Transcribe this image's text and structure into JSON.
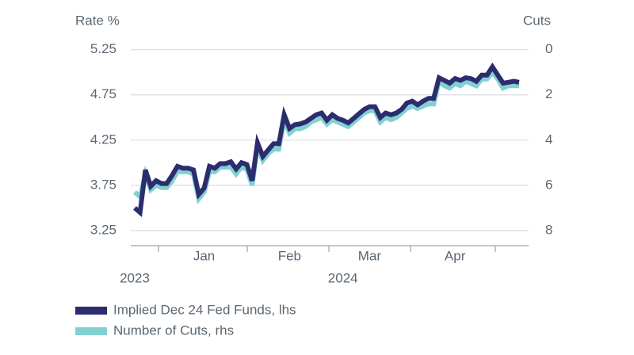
{
  "chart_data": {
    "type": "line",
    "y_axis_title": "Rate %",
    "y2_axis_title": "Cuts",
    "categories": [
      null,
      null,
      null,
      null,
      null,
      null,
      null,
      null,
      null,
      null,
      null,
      null,
      null,
      "Jan",
      null,
      null,
      null,
      null,
      null,
      null,
      null,
      null,
      null,
      null,
      null,
      null,
      null,
      null,
      null,
      "Feb",
      null,
      null,
      null,
      null,
      null,
      null,
      null,
      null,
      null,
      null,
      null,
      null,
      null,
      null,
      "Mar",
      null,
      null,
      null,
      null,
      null,
      null,
      null,
      null,
      null,
      null,
      null,
      null,
      null,
      null,
      null,
      "Apr",
      null,
      null,
      null,
      null,
      null,
      null,
      null,
      null,
      null,
      null,
      null,
      null
    ],
    "year_labels": [
      "2023",
      null,
      null,
      null,
      null,
      null,
      null,
      null,
      null,
      null,
      null,
      null,
      null,
      null,
      null,
      null,
      null,
      null,
      null,
      null,
      null,
      null,
      null,
      null,
      null,
      null,
      null,
      null,
      null,
      null,
      null,
      null,
      null,
      null,
      null,
      null,
      null,
      null,
      null,
      "2024",
      null,
      null,
      null,
      null,
      null,
      null,
      null,
      null,
      null,
      null,
      null,
      null,
      null,
      null,
      null,
      null,
      null,
      null,
      null,
      null,
      null,
      null,
      null,
      null,
      null,
      null,
      null,
      null,
      null,
      null,
      null,
      null,
      null
    ],
    "series": [
      {
        "name": "Number of Cuts, rhs",
        "color": "#82d0d1",
        "axis": "y2",
        "values": [
          6.3,
          6.5,
          5.5,
          6.2,
          6.0,
          6.1,
          6.1,
          5.8,
          5.4,
          5.4,
          5.4,
          5.5,
          6.6,
          6.3,
          5.4,
          5.4,
          5.2,
          5.2,
          5.2,
          5.5,
          5.2,
          5.3,
          6.0,
          4.3,
          4.9,
          4.6,
          4.4,
          4.4,
          3.1,
          3.7,
          3.5,
          3.5,
          3.4,
          3.2,
          3.1,
          3.0,
          3.3,
          3.1,
          3.2,
          3.3,
          3.4,
          3.2,
          3.0,
          2.8,
          2.7,
          2.7,
          3.2,
          3.0,
          3.1,
          3.0,
          2.8,
          2.6,
          2.5,
          2.6,
          2.5,
          2.4,
          2.4,
          1.4,
          1.6,
          1.7,
          1.5,
          1.6,
          1.4,
          1.5,
          1.6,
          1.3,
          1.3,
          1.0,
          1.3,
          1.7,
          1.6,
          1.6,
          1.6
        ]
      },
      {
        "name": "Implied Dec 24 Fed Funds, lhs",
        "color": "#2b2d6e",
        "values": [
          3.5,
          3.45,
          3.92,
          3.74,
          3.8,
          3.77,
          3.77,
          3.86,
          3.96,
          3.94,
          3.94,
          3.92,
          3.65,
          3.72,
          3.96,
          3.94,
          3.99,
          3.99,
          4.01,
          3.93,
          4.0,
          3.98,
          3.8,
          4.22,
          4.07,
          4.14,
          4.21,
          4.21,
          4.53,
          4.38,
          4.42,
          4.43,
          4.45,
          4.49,
          4.53,
          4.55,
          4.47,
          4.53,
          4.49,
          4.47,
          4.44,
          4.49,
          4.54,
          4.59,
          4.62,
          4.62,
          4.5,
          4.55,
          4.53,
          4.55,
          4.59,
          4.66,
          4.68,
          4.64,
          4.68,
          4.71,
          4.71,
          4.94,
          4.91,
          4.88,
          4.93,
          4.91,
          4.94,
          4.93,
          4.9,
          4.97,
          4.97,
          5.06,
          4.97,
          4.88,
          4.89,
          4.9,
          4.89
        ]
      }
    ],
    "legend_order": [
      1,
      0
    ],
    "ylim": [
      3.1,
      5.3
    ],
    "yticks": [
      3.25,
      3.75,
      4.25,
      4.75,
      5.25
    ],
    "y2lim": [
      8.6,
      -0.2
    ],
    "y2ticks": [
      0,
      2,
      4,
      6,
      8
    ],
    "grid": true
  }
}
